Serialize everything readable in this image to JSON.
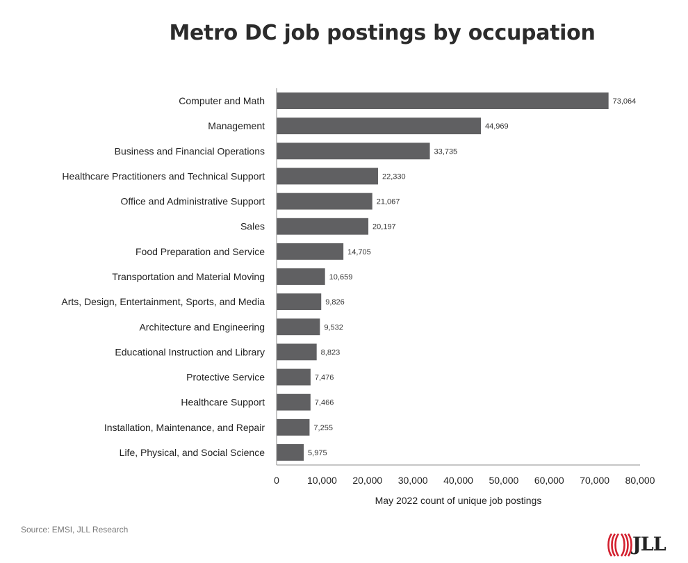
{
  "chart_data": {
    "type": "bar",
    "orientation": "horizontal",
    "title": "Metro DC job postings by occupation",
    "xlabel": "May 2022 count of unique job postings",
    "ylabel": "",
    "xlim": [
      0,
      80000
    ],
    "xticks": [
      "0",
      "10,000",
      "20,000",
      "30,000",
      "40,000",
      "50,000",
      "60,000",
      "70,000",
      "80,000"
    ],
    "categories": [
      "Computer and Math",
      "Management",
      "Business and Financial Operations",
      "Healthcare Practitioners and Technical Support",
      "Office and Administrative Support",
      "Sales",
      "Food Preparation and Service",
      "Transportation and Material Moving",
      "Arts, Design, Entertainment, Sports, and Media",
      "Architecture and Engineering",
      "Educational Instruction and Library",
      "Protective Service",
      "Healthcare Support",
      "Installation, Maintenance, and Repair",
      "Life, Physical, and Social Science"
    ],
    "values": [
      73064,
      44969,
      33735,
      22330,
      21067,
      20197,
      14705,
      10659,
      9826,
      9532,
      8823,
      7476,
      7466,
      7255,
      5975
    ],
    "value_labels": [
      "73,064",
      "44,969",
      "33,735",
      "22,330",
      "21,067",
      "20,197",
      "14,705",
      "10,659",
      "9,826",
      "9,532",
      "8,823",
      "7,476",
      "7,466",
      "7,255",
      "5,975"
    ],
    "bar_color": "#606062",
    "grid": false,
    "legend": "none"
  },
  "footer": {
    "source": "Source: EMSI, JLL Research",
    "logo_text": "JLL",
    "logo_color": "#d3202f"
  }
}
